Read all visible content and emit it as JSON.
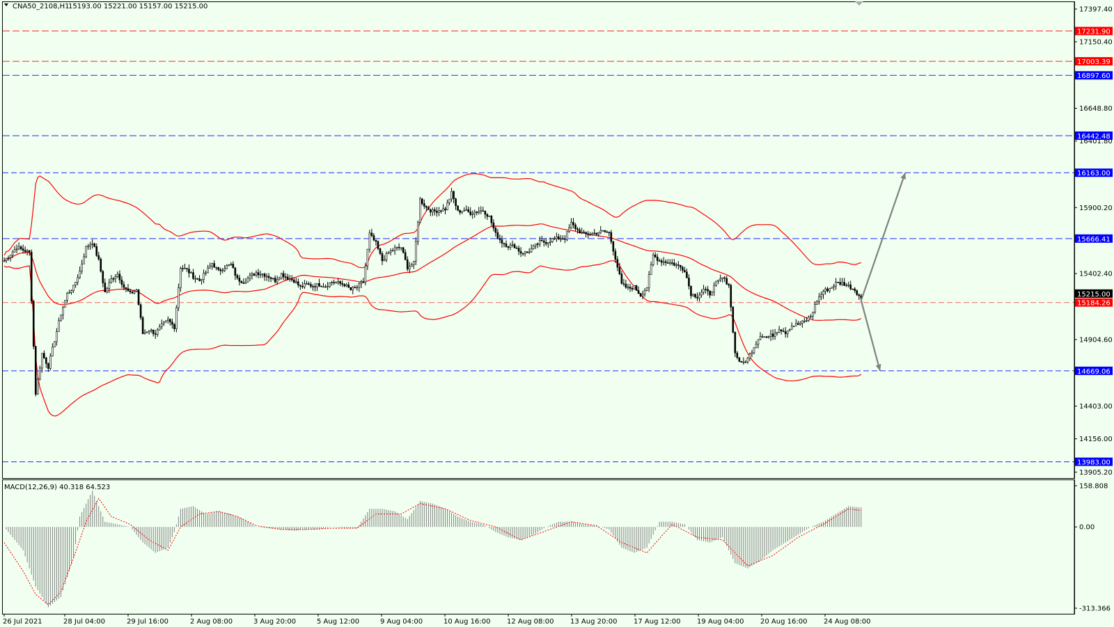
{
  "header": {
    "symbol_label": "CNA50_2108,H1",
    "ohlc": "15193.00 15221.00 15157.00 15215.00"
  },
  "macd_label": "MACD(12,26,9) 40.318 64.523",
  "colors": {
    "background": "#f0fff0",
    "band": "#ff0000",
    "candle": "#000000",
    "red_level": "#ff0000",
    "blue_level": "#0000ff",
    "histogram": "#808080",
    "arrow": "#808080"
  },
  "chart_data": [
    {
      "type": "candlestick",
      "title": "CNA50_2108,H1",
      "ylim": [
        13860,
        17450
      ],
      "y_ticks": [
        17397.4,
        17150.4,
        16648.8,
        16401.8,
        15900.2,
        15402.4,
        15181.0,
        14904.6,
        14403.0,
        14156.0,
        13905.2
      ],
      "x_labels": [
        "26 Jul 2021",
        "28 Jul 04:00",
        "29 Jul 16:00",
        "2 Aug 08:00",
        "3 Aug 20:00",
        "5 Aug 12:00",
        "9 Aug 04:00",
        "10 Aug 16:00",
        "12 Aug 08:00",
        "13 Aug 20:00",
        "17 Aug 12:00",
        "19 Aug 04:00",
        "20 Aug 16:00",
        "24 Aug 08:00"
      ],
      "current_price": "15215.00",
      "bands": "Bollinger Bands",
      "price_path": [
        [
          0,
          15500
        ],
        [
          2,
          15600
        ],
        [
          4,
          15560
        ],
        [
          5,
          14500
        ],
        [
          6,
          14800
        ],
        [
          7,
          14700
        ],
        [
          8,
          14900
        ],
        [
          9,
          15100
        ],
        [
          10,
          15250
        ],
        [
          11,
          15300
        ],
        [
          12,
          15420
        ],
        [
          13,
          15600
        ],
        [
          14,
          15640
        ],
        [
          15,
          15500
        ],
        [
          16,
          15260
        ],
        [
          17,
          15360
        ],
        [
          18,
          15400
        ],
        [
          19,
          15300
        ],
        [
          20,
          15250
        ],
        [
          21,
          15280
        ],
        [
          22,
          14950
        ],
        [
          23,
          14980
        ],
        [
          24,
          14950
        ],
        [
          25,
          15010
        ],
        [
          26,
          15050
        ],
        [
          27,
          15000
        ],
        [
          28,
          15450
        ],
        [
          29,
          15430
        ],
        [
          30,
          15380
        ],
        [
          31,
          15350
        ],
        [
          32,
          15410
        ],
        [
          33,
          15480
        ],
        [
          34,
          15420
        ],
        [
          35,
          15450
        ],
        [
          36,
          15470
        ],
        [
          37,
          15360
        ],
        [
          38,
          15340
        ],
        [
          39,
          15380
        ],
        [
          40,
          15410
        ],
        [
          41,
          15400
        ],
        [
          42,
          15380
        ],
        [
          43,
          15350
        ],
        [
          44,
          15400
        ],
        [
          45,
          15370
        ],
        [
          46,
          15350
        ],
        [
          47,
          15300
        ],
        [
          48,
          15320
        ],
        [
          49,
          15310
        ],
        [
          50,
          15320
        ],
        [
          51,
          15310
        ],
        [
          52,
          15340
        ],
        [
          53,
          15330
        ],
        [
          54,
          15320
        ],
        [
          55,
          15280
        ],
        [
          56,
          15300
        ],
        [
          57,
          15340
        ],
        [
          58,
          15700
        ],
        [
          59,
          15630
        ],
        [
          60,
          15500
        ],
        [
          61,
          15560
        ],
        [
          62,
          15590
        ],
        [
          63,
          15600
        ],
        [
          64,
          15450
        ],
        [
          65,
          15480
        ],
        [
          66,
          15960
        ],
        [
          67,
          15900
        ],
        [
          68,
          15870
        ],
        [
          69,
          15880
        ],
        [
          70,
          15890
        ],
        [
          71,
          16010
        ],
        [
          72,
          15870
        ],
        [
          73,
          15880
        ],
        [
          74,
          15860
        ],
        [
          75,
          15870
        ],
        [
          76,
          15880
        ],
        [
          77,
          15830
        ],
        [
          78,
          15700
        ],
        [
          79,
          15640
        ],
        [
          80,
          15610
        ],
        [
          81,
          15610
        ],
        [
          82,
          15560
        ],
        [
          83,
          15560
        ],
        [
          84,
          15600
        ],
        [
          85,
          15640
        ],
        [
          86,
          15640
        ],
        [
          87,
          15660
        ],
        [
          88,
          15670
        ],
        [
          89,
          15670
        ],
        [
          90,
          15780
        ],
        [
          91,
          15730
        ],
        [
          92,
          15700
        ],
        [
          93,
          15700
        ],
        [
          94,
          15710
        ],
        [
          95,
          15720
        ],
        [
          96,
          15710
        ],
        [
          97,
          15520
        ],
        [
          98,
          15320
        ],
        [
          99,
          15290
        ],
        [
          100,
          15300
        ],
        [
          101,
          15240
        ],
        [
          102,
          15300
        ],
        [
          103,
          15540
        ],
        [
          104,
          15500
        ],
        [
          105,
          15490
        ],
        [
          106,
          15480
        ],
        [
          107,
          15460
        ],
        [
          108,
          15430
        ],
        [
          109,
          15250
        ],
        [
          110,
          15230
        ],
        [
          111,
          15280
        ],
        [
          112,
          15250
        ],
        [
          113,
          15330
        ],
        [
          114,
          15370
        ],
        [
          115,
          15320
        ],
        [
          116,
          14800
        ],
        [
          117,
          14720
        ],
        [
          118,
          14760
        ],
        [
          119,
          14850
        ],
        [
          120,
          14940
        ],
        [
          121,
          14920
        ],
        [
          122,
          14940
        ],
        [
          123,
          14990
        ],
        [
          124,
          14960
        ],
        [
          125,
          15010
        ],
        [
          126,
          15020
        ],
        [
          127,
          15040
        ],
        [
          128,
          15080
        ],
        [
          129,
          15200
        ],
        [
          130,
          15270
        ],
        [
          131,
          15290
        ],
        [
          132,
          15330
        ],
        [
          133,
          15330
        ],
        [
          134,
          15310
        ],
        [
          135,
          15280
        ],
        [
          136,
          15215
        ]
      ],
      "levels": [
        {
          "value": "17231.90",
          "color": "red"
        },
        {
          "value": "17003.39",
          "color": "red"
        },
        {
          "value": "16897.60",
          "color": "blue"
        },
        {
          "value": "16442.48",
          "color": "blue"
        },
        {
          "value": "16163.00",
          "color": "blue"
        },
        {
          "value": "15666.41",
          "color": "blue"
        },
        {
          "value": "15184.26",
          "color": "red"
        },
        {
          "value": "14669.06",
          "color": "blue"
        },
        {
          "value": "13983.00",
          "color": "blue"
        }
      ],
      "arrows": [
        {
          "from": [
            136,
            15200
          ],
          "to": [
            143,
            16163
          ]
        },
        {
          "from": [
            136,
            15200
          ],
          "to": [
            139,
            14669
          ]
        }
      ]
    },
    {
      "type": "bar",
      "title": "MACD(12,26,9) 40.318 64.523",
      "ylim": [
        -313.366,
        158.808
      ],
      "y_ticks": [
        "158.808",
        "0.00",
        "-313.366"
      ],
      "histogram": [
        [
          0,
          0
        ],
        [
          3,
          -90
        ],
        [
          5,
          -230
        ],
        [
          7,
          -310
        ],
        [
          9,
          -270
        ],
        [
          11,
          -120
        ],
        [
          12,
          40
        ],
        [
          13,
          90
        ],
        [
          14,
          140
        ],
        [
          15,
          80
        ],
        [
          16,
          20
        ],
        [
          18,
          10
        ],
        [
          20,
          0
        ],
        [
          22,
          -60
        ],
        [
          24,
          -100
        ],
        [
          26,
          -80
        ],
        [
          27,
          -20
        ],
        [
          28,
          70
        ],
        [
          30,
          80
        ],
        [
          32,
          50
        ],
        [
          34,
          60
        ],
        [
          36,
          50
        ],
        [
          38,
          30
        ],
        [
          40,
          0
        ],
        [
          42,
          -5
        ],
        [
          44,
          -10
        ],
        [
          46,
          -15
        ],
        [
          48,
          -10
        ],
        [
          50,
          -10
        ],
        [
          52,
          0
        ],
        [
          54,
          -5
        ],
        [
          56,
          -5
        ],
        [
          58,
          70
        ],
        [
          60,
          70
        ],
        [
          62,
          60
        ],
        [
          64,
          30
        ],
        [
          66,
          100
        ],
        [
          68,
          90
        ],
        [
          70,
          70
        ],
        [
          72,
          40
        ],
        [
          74,
          20
        ],
        [
          76,
          10
        ],
        [
          78,
          -20
        ],
        [
          80,
          -40
        ],
        [
          82,
          -50
        ],
        [
          84,
          -30
        ],
        [
          86,
          0
        ],
        [
          88,
          20
        ],
        [
          90,
          20
        ],
        [
          92,
          10
        ],
        [
          94,
          5
        ],
        [
          96,
          -10
        ],
        [
          98,
          -80
        ],
        [
          100,
          -100
        ],
        [
          102,
          -80
        ],
        [
          104,
          20
        ],
        [
          106,
          20
        ],
        [
          108,
          10
        ],
        [
          110,
          -50
        ],
        [
          112,
          -60
        ],
        [
          114,
          -40
        ],
        [
          116,
          -140
        ],
        [
          118,
          -160
        ],
        [
          120,
          -130
        ],
        [
          122,
          -90
        ],
        [
          124,
          -60
        ],
        [
          126,
          -30
        ],
        [
          128,
          0
        ],
        [
          130,
          20
        ],
        [
          132,
          50
        ],
        [
          134,
          80
        ],
        [
          136,
          75
        ],
        [
          137,
          72
        ]
      ],
      "signal": [
        [
          0,
          -60
        ],
        [
          3,
          -170
        ],
        [
          5,
          -260
        ],
        [
          7,
          -300
        ],
        [
          9,
          -250
        ],
        [
          11,
          -120
        ],
        [
          13,
          20
        ],
        [
          15,
          110
        ],
        [
          17,
          40
        ],
        [
          20,
          10
        ],
        [
          23,
          -50
        ],
        [
          26,
          -90
        ],
        [
          28,
          0
        ],
        [
          31,
          50
        ],
        [
          34,
          60
        ],
        [
          37,
          40
        ],
        [
          40,
          5
        ],
        [
          44,
          -10
        ],
        [
          48,
          -10
        ],
        [
          52,
          -5
        ],
        [
          56,
          -5
        ],
        [
          59,
          50
        ],
        [
          63,
          50
        ],
        [
          66,
          90
        ],
        [
          70,
          70
        ],
        [
          74,
          25
        ],
        [
          78,
          0
        ],
        [
          82,
          -50
        ],
        [
          86,
          -15
        ],
        [
          90,
          20
        ],
        [
          94,
          5
        ],
        [
          98,
          -60
        ],
        [
          102,
          -100
        ],
        [
          106,
          10
        ],
        [
          110,
          -40
        ],
        [
          114,
          -50
        ],
        [
          118,
          -150
        ],
        [
          122,
          -110
        ],
        [
          126,
          -40
        ],
        [
          130,
          10
        ],
        [
          134,
          70
        ],
        [
          137,
          60
        ]
      ]
    }
  ]
}
